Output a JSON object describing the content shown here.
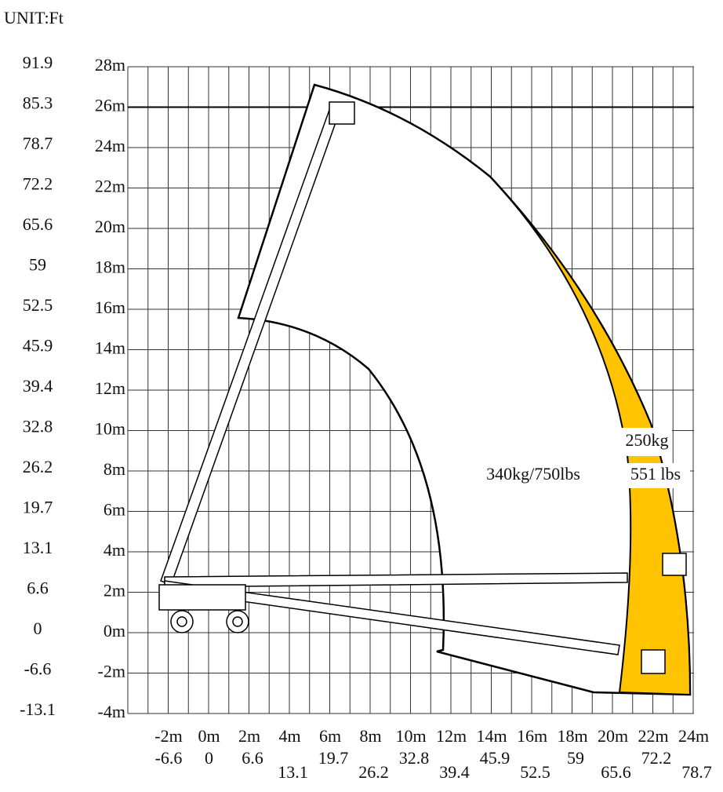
{
  "unit": "UNIT:Ft",
  "y_labels_m": [
    "28m",
    "26m",
    "24m",
    "22m",
    "20m",
    "18m",
    "16m",
    "14m",
    "12m",
    "10m",
    "8m",
    "6m",
    "4m",
    "2m",
    "0m",
    "-2m",
    "-4m"
  ],
  "y_labels_ft": [
    "91.9",
    "85.3",
    "78.7",
    "72.2",
    "65.6",
    "59",
    "52.5",
    "45.9",
    "39.4",
    "32.8",
    "26.2",
    "19.7",
    "13.1",
    "6.6",
    "0",
    "-6.6",
    "-13.1"
  ],
  "x_labels_m": [
    "-2m",
    "0m",
    "2m",
    "4m",
    "6m",
    "8m",
    "10m",
    "12m",
    "14m",
    "16m",
    "18m",
    "20m",
    "22m",
    "24m"
  ],
  "x_labels_ft": [
    "-6.6",
    "0",
    "6.6",
    "13.1",
    "19.7",
    "26.2",
    "32.8",
    "39.4",
    "45.9",
    "52.5",
    "59",
    "65.6",
    "72.2",
    "78.7"
  ],
  "load_main": "340kg/750lbs",
  "load_outer_kg": "250kg",
  "load_outer_lbs": "551 lbs"
}
